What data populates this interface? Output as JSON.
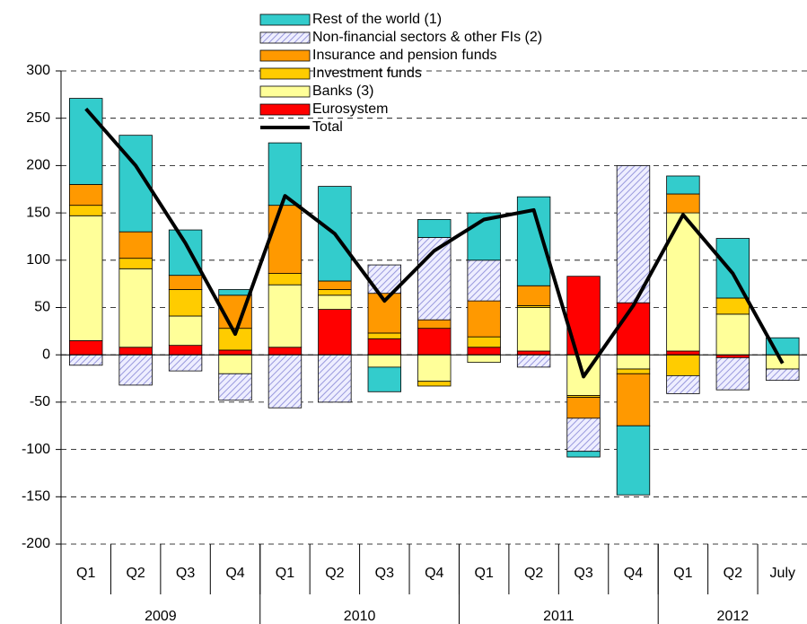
{
  "chart_data": {
    "type": "bar",
    "stacked": true,
    "categories": [
      "Q1",
      "Q2",
      "Q3",
      "Q4",
      "Q1",
      "Q2",
      "Q3",
      "Q4",
      "Q1",
      "Q2",
      "Q3",
      "Q4",
      "Q1",
      "Q2",
      "July"
    ],
    "groups": [
      {
        "label": "2009",
        "size": 4
      },
      {
        "label": "2010",
        "size": 4
      },
      {
        "label": "2011",
        "size": 4
      },
      {
        "label": "2012",
        "size": 3
      }
    ],
    "series": [
      {
        "name": "Eurosystem",
        "color": "#ff0000",
        "values": [
          15,
          8,
          10,
          5,
          8,
          48,
          17,
          28,
          8,
          4,
          83,
          55,
          4,
          -3,
          0
        ]
      },
      {
        "name": "Banks (3)",
        "color": "#ffff99",
        "values": [
          132,
          83,
          31,
          -20,
          66,
          15,
          -13,
          -28,
          -8,
          46,
          -43,
          -15,
          146,
          43,
          -15
        ]
      },
      {
        "name": "Investment funds",
        "color": "#ffcc00",
        "values": [
          11,
          11,
          28,
          23,
          12,
          6,
          6,
          -5,
          11,
          2,
          -2,
          -5,
          -22,
          17,
          0
        ]
      },
      {
        "name": "Insurance and pension funds",
        "color": "#ff9900",
        "values": [
          22,
          28,
          15,
          35,
          72,
          9,
          42,
          9,
          38,
          21,
          -22,
          -55,
          20,
          0,
          0
        ]
      },
      {
        "name": "Non-financial sectors & other FIs (2)",
        "color": "#ccccff",
        "pattern": "hatch",
        "values": [
          -11,
          -32,
          -17,
          -28,
          -56,
          -50,
          30,
          87,
          43,
          -13,
          -35,
          145,
          -19,
          -34,
          -12
        ]
      },
      {
        "name": "Rest of the world (1)",
        "color": "#33cccc",
        "values": [
          91,
          102,
          48,
          6,
          66,
          100,
          -26,
          19,
          50,
          94,
          -6,
          -73,
          19,
          63,
          18
        ]
      }
    ],
    "line": {
      "name": "Total",
      "color": "#000000",
      "values": [
        260,
        200,
        118,
        22,
        168,
        128,
        57,
        110,
        143,
        153,
        -23,
        52,
        148,
        86,
        -9
      ]
    },
    "ylim": [
      -200,
      300
    ],
    "yticks": [
      -200,
      -150,
      -100,
      -50,
      0,
      50,
      100,
      150,
      200,
      250,
      300
    ],
    "grid": true,
    "legend": "top"
  }
}
